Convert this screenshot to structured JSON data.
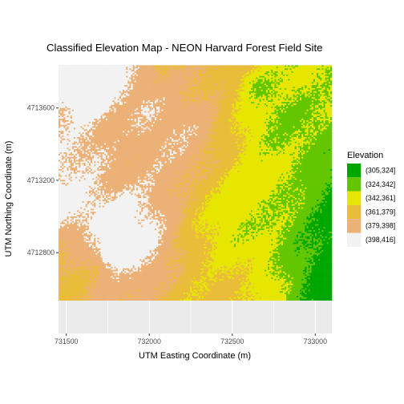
{
  "chart_data": {
    "type": "heatmap",
    "title": "Classified Elevation Map - NEON Harvard Forest Field Site",
    "xlabel": "UTM Easting Coordinate (m)",
    "ylabel": "UTM Northing Coordinate (m)",
    "xlim": [
      731453,
      733100
    ],
    "ylim": [
      4712353,
      4713838
    ],
    "x_ticks": [
      731500,
      732000,
      732500,
      733000
    ],
    "x_tick_labels": [
      "731500",
      "732000",
      "732500",
      "733000"
    ],
    "y_ticks": [
      4712800,
      4713200,
      4713600
    ],
    "y_tick_labels": [
      "4712800",
      "4713200",
      "4713600"
    ],
    "raster_extent": {
      "x": [
        731453,
        733153
      ],
      "y": [
        4712536,
        4713836
      ]
    },
    "grid": true,
    "legend": {
      "title": "Elevation",
      "placement": "right",
      "classes": [
        {
          "label": "(305,324]",
          "color": "#00a600"
        },
        {
          "label": "(324,342]",
          "color": "#63c600"
        },
        {
          "label": "(342,361]",
          "color": "#e6e600"
        },
        {
          "label": "(361,379]",
          "color": "#e9bd3a"
        },
        {
          "label": "(379,398]",
          "color": "#ecb176"
        },
        {
          "label": "(398,416]",
          "color": "#f2f2f2"
        }
      ]
    },
    "panel_background": "#ebebeb",
    "grid_color": "#ffffff"
  }
}
